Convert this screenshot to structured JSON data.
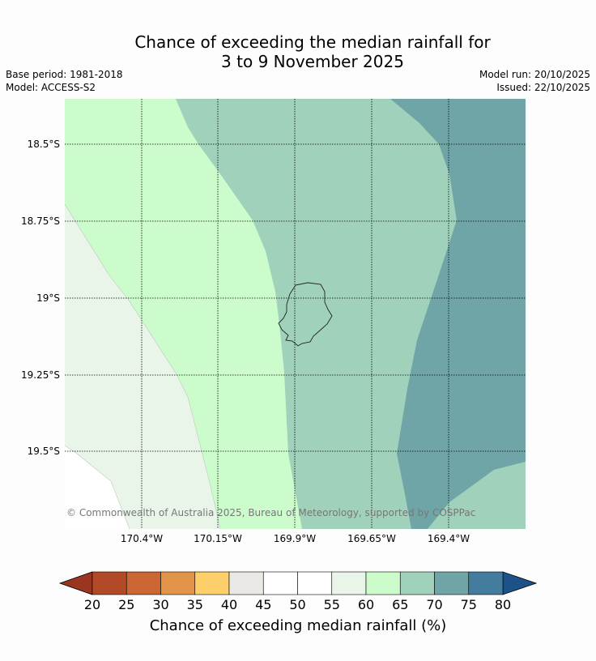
{
  "title": {
    "line1": "Chance of exceeding the median rainfall for",
    "line2": "3 to 9 November 2025"
  },
  "meta": {
    "base_period": "Base period: 1981-2018",
    "model": "Model: ACCESS-S2",
    "model_run": "Model run: 20/10/2025",
    "issued": "Issued: 22/10/2025"
  },
  "map": {
    "lat_labels": [
      "18.5°S",
      "18.75°S",
      "19°S",
      "19.25°S",
      "19.5°S"
    ],
    "lon_labels": [
      "170.4°W",
      "170.15°W",
      "169.9°W",
      "169.65°W",
      "169.4°W"
    ],
    "copyright": "© Commonwealth of Australia 2025, Bureau of Meteorology, supported by COSPPac",
    "zones": [
      {
        "name": "45-50",
        "color": "#ffffff"
      },
      {
        "name": "55-60",
        "color": "#eaf5ea"
      },
      {
        "name": "60-65",
        "color": "#ccfccc"
      },
      {
        "name": "65-70",
        "color": "#9fd1bb"
      },
      {
        "name": "70-75",
        "color": "#70a5a7"
      }
    ]
  },
  "colorbar": {
    "ticks": [
      "20",
      "25",
      "30",
      "35",
      "40",
      "45",
      "50",
      "55",
      "60",
      "65",
      "70",
      "75",
      "80"
    ],
    "label": "Chance of exceeding median rainfall (%)",
    "colors": [
      "#b24a27",
      "#cc6633",
      "#e29448",
      "#fdcf6a",
      "#eae9e5",
      "#ffffff",
      "#ffffff",
      "#eaf5ea",
      "#ccfccc",
      "#9fd1bb",
      "#70a5a7",
      "#437c9c"
    ],
    "under_color": "#9a3620",
    "over_color": "#1c5288"
  }
}
